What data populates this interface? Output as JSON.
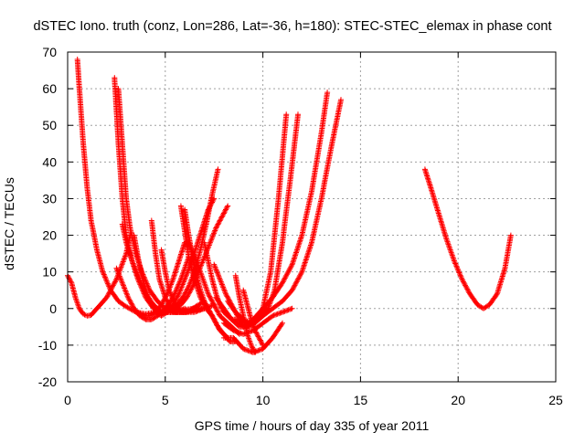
{
  "chart_data": {
    "type": "scatter",
    "title": "dSTEC Iono. truth (conz, Lon=286, Lat=-36, h=180): STEC-STEC_elemax in phase cont",
    "xlabel": "GPS time / hours of day 335 of year 2011",
    "ylabel": "dSTEC  / TECUs",
    "xlim": [
      0,
      25
    ],
    "ylim": [
      -20,
      70
    ],
    "x_ticks": [
      "0",
      "5",
      "10",
      "15",
      "20",
      "25"
    ],
    "y_ticks": [
      "-20",
      "-10",
      "0",
      "10",
      "20",
      "30",
      "40",
      "50",
      "60",
      "70"
    ],
    "grid": true,
    "marker": "+",
    "color": "#ff0000",
    "series": [
      {
        "x": [
          0.0,
          0.2,
          0.4,
          0.6,
          0.8,
          1.0,
          1.2,
          1.5,
          2.0,
          2.5,
          3.0,
          3.2
        ],
        "y": [
          9,
          7,
          3,
          0,
          -1.5,
          -2,
          -1.8,
          0,
          3,
          8,
          15,
          20
        ]
      },
      {
        "x": [
          0.5,
          0.6,
          0.8,
          1.0,
          1.2,
          1.5,
          1.8,
          2.2,
          2.6,
          3.0,
          3.5,
          4.0,
          4.5,
          5.0,
          5.5,
          6.0,
          6.5
        ],
        "y": [
          68,
          60,
          45,
          33,
          24,
          16,
          10,
          5,
          2,
          0.5,
          -1,
          -1.5,
          -1,
          -0.5,
          -0.5,
          -0.3,
          0
        ]
      },
      {
        "x": [
          2.4,
          2.6,
          2.8,
          3.0,
          3.3,
          3.6,
          4.0,
          4.4,
          4.8,
          5.2,
          5.6,
          6.0
        ],
        "y": [
          63,
          45,
          30,
          20,
          13,
          8,
          3,
          0,
          -1,
          -1,
          -1,
          -0.5
        ]
      },
      {
        "x": [
          2.6,
          2.8,
          3.0,
          3.2,
          3.5,
          3.8,
          4.2,
          4.6,
          5.0,
          5.5,
          6.0,
          6.5,
          7.0
        ],
        "y": [
          60,
          45,
          30,
          22,
          15,
          10,
          5,
          2,
          0,
          -1,
          -1,
          -1,
          0
        ]
      },
      {
        "x": [
          2.8,
          3.0,
          3.3,
          3.6,
          4.0,
          4.4,
          4.8,
          5.2,
          5.6,
          6.0
        ],
        "y": [
          23,
          18,
          13,
          9,
          4,
          1,
          -1,
          -1,
          -1,
          0
        ]
      },
      {
        "x": [
          3.4,
          3.6,
          3.8,
          4.0,
          4.2,
          4.5,
          4.8,
          5.2,
          5.6,
          6.0,
          6.5,
          7.0,
          7.5
        ],
        "y": [
          20,
          14,
          9,
          5,
          2,
          0,
          -1,
          -1,
          -1,
          -1,
          -0.5,
          0,
          1
        ]
      },
      {
        "x": [
          2.5,
          2.8,
          3.1,
          3.4,
          3.7,
          4.0,
          4.3,
          4.6,
          5.0,
          5.4,
          5.8,
          6.2
        ],
        "y": [
          11,
          7,
          3,
          0,
          -2,
          -3,
          -3,
          -2,
          0,
          3,
          8,
          14
        ]
      },
      {
        "x": [
          4.3,
          4.5,
          4.7,
          5.0,
          5.3,
          5.6,
          6.0,
          6.4,
          6.8,
          7.2
        ],
        "y": [
          24,
          15,
          8,
          3,
          0,
          -1,
          -1,
          -0.5,
          0,
          0
        ]
      },
      {
        "x": [
          3.6,
          3.9,
          4.2,
          4.5,
          4.8,
          5.1,
          5.4,
          5.7,
          6.0
        ],
        "y": [
          -1,
          -2,
          -2,
          -1,
          1,
          4,
          8,
          13,
          18
        ]
      },
      {
        "x": [
          4.8,
          5.0,
          5.2,
          5.5,
          5.8,
          6.1,
          6.4,
          6.7,
          7.0
        ],
        "y": [
          16,
          10,
          5,
          1,
          -1,
          -1,
          0,
          1,
          2
        ]
      },
      {
        "x": [
          4.5,
          4.8,
          5.1,
          5.4,
          5.7,
          6.0,
          6.3,
          6.6,
          6.9,
          7.2,
          7.5
        ],
        "y": [
          -1,
          -2,
          -1,
          1,
          4,
          8,
          12,
          17,
          22,
          27,
          30
        ]
      },
      {
        "x": [
          5.8,
          6.0,
          6.2,
          6.5,
          6.8,
          7.1,
          7.4,
          7.7,
          8.0,
          8.3,
          8.6
        ],
        "y": [
          28,
          21,
          14,
          8,
          3,
          0,
          -2,
          -5,
          -7,
          -9,
          -9
        ]
      },
      {
        "x": [
          6.0,
          6.2,
          6.4,
          6.6,
          6.8,
          7.0,
          7.2,
          7.4,
          7.6,
          7.8,
          8.0,
          8.2
        ],
        "y": [
          27,
          20,
          14,
          9,
          5,
          2,
          0,
          -2,
          -4,
          -6,
          -7,
          -8
        ]
      },
      {
        "x": [
          5.0,
          5.3,
          5.6,
          5.9,
          6.2,
          6.5,
          6.8,
          7.1,
          7.4,
          7.7
        ],
        "y": [
          0,
          0,
          1,
          3,
          6,
          10,
          16,
          23,
          31,
          38
        ]
      },
      {
        "x": [
          5.5,
          5.8,
          6.1,
          6.4,
          6.7,
          7.0,
          7.3,
          7.6,
          7.9,
          8.2
        ],
        "y": [
          0,
          1,
          3,
          6,
          10,
          14,
          18,
          22,
          25,
          28
        ]
      },
      {
        "x": [
          6.2,
          6.5,
          6.8,
          7.0,
          7.2,
          7.4,
          7.6,
          7.8,
          8.0,
          8.2,
          8.4,
          8.6,
          8.8
        ],
        "y": [
          18,
          14,
          10,
          7,
          4,
          2,
          0,
          -2,
          -3,
          -4,
          -5,
          -6,
          -7
        ]
      },
      {
        "x": [
          7.0,
          7.2,
          7.4,
          7.6,
          7.8,
          8.0,
          8.2,
          8.4,
          8.6,
          8.8,
          9.0
        ],
        "y": [
          18,
          13,
          8,
          4,
          1,
          -1,
          -2,
          -3,
          -3,
          -4,
          -5
        ]
      },
      {
        "x": [
          7.5,
          7.8,
          8.1,
          8.4,
          8.7,
          9.0,
          9.3,
          9.6,
          9.9,
          10.2
        ],
        "y": [
          12,
          8,
          4,
          1,
          -2,
          -4,
          -5,
          -4,
          -2,
          0
        ]
      },
      {
        "x": [
          8.6,
          8.8,
          9.0,
          9.2,
          9.4,
          9.6
        ],
        "y": [
          9,
          3,
          -2,
          -7,
          -10,
          -12
        ]
      },
      {
        "x": [
          9.0,
          9.2,
          9.4,
          9.6,
          9.8,
          10.0
        ],
        "y": [
          5,
          1,
          -3,
          -6,
          -8,
          -10
        ]
      },
      {
        "x": [
          8.0,
          8.5,
          9.0,
          9.5,
          10.0,
          10.5,
          11.0
        ],
        "y": [
          -8,
          -8,
          -11,
          -12,
          -11,
          -8,
          -4
        ]
      },
      {
        "x": [
          8.0,
          8.5,
          9.0,
          9.5,
          10.0,
          10.5,
          11.0,
          11.5
        ],
        "y": [
          -4,
          -6,
          -7,
          -6,
          -4,
          -2,
          -1,
          0
        ]
      },
      {
        "x": [
          7.6,
          8.0,
          8.4,
          8.8,
          9.2,
          9.6,
          10.0,
          10.4,
          10.8,
          11.2
        ],
        "y": [
          3,
          0,
          -3,
          -5,
          -5,
          -3,
          0,
          10,
          30,
          53
        ]
      },
      {
        "x": [
          8.2,
          8.6,
          9.0,
          9.4,
          9.8,
          10.2,
          10.6,
          11.0,
          11.4,
          11.8
        ],
        "y": [
          2,
          -1,
          -3,
          -4,
          -3,
          -1,
          5,
          18,
          35,
          53
        ]
      },
      {
        "x": [
          9.0,
          9.5,
          10.0,
          10.5,
          11.0,
          11.5,
          12.0,
          12.5,
          13.0,
          13.3
        ],
        "y": [
          -5,
          -3,
          0,
          3,
          7,
          12,
          20,
          32,
          48,
          59
        ]
      },
      {
        "x": [
          9.5,
          10.0,
          10.5,
          11.0,
          11.5,
          12.0,
          12.5,
          13.0,
          13.5,
          14.0
        ],
        "y": [
          -4,
          -2,
          0,
          2,
          5,
          10,
          18,
          30,
          44,
          57
        ]
      },
      {
        "x": [
          18.3,
          18.6,
          19.0,
          19.4,
          19.8,
          20.2,
          20.6,
          21.0,
          21.3,
          21.6,
          22.0,
          22.4,
          22.7
        ],
        "y": [
          38,
          33,
          26,
          19,
          13,
          8,
          4,
          1,
          0,
          1,
          4,
          11,
          20
        ]
      }
    ]
  }
}
